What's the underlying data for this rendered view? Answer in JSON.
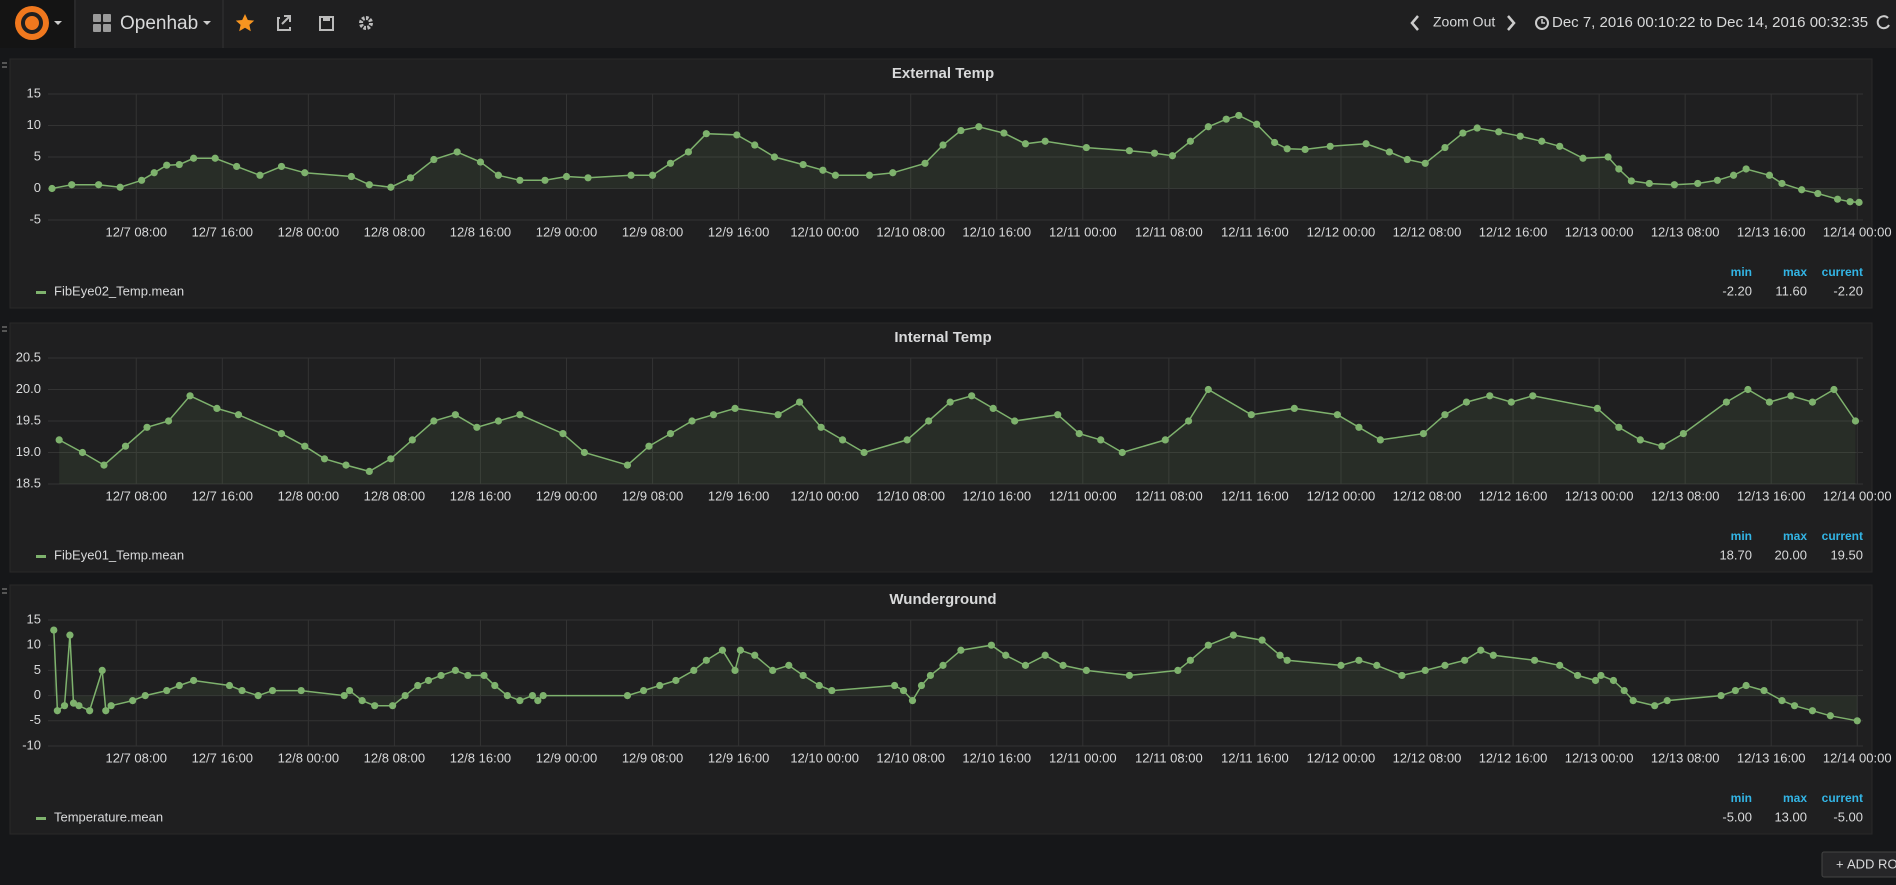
{
  "header": {
    "dashboard": "Openhab",
    "zoom": "Zoom Out",
    "time_range": "Dec 7, 2016 00:10:22 to Dec 14, 2016 00:32:35",
    "add_row": "ADD ROW"
  },
  "chart_data": [
    {
      "type": "line",
      "title": "External Temp",
      "x": [
        "12/7 00:10",
        "12/7 02:00",
        "12/7 04:30",
        "12/7 06:30",
        "12/7 08:30",
        "12/7 09:40",
        "12/7 10:50",
        "12/7 12:00",
        "12/7 13:20",
        "12/7 15:20",
        "12/7 17:20",
        "12/7 19:30",
        "12/7 21:30",
        "12/7 23:40",
        "12/8 04:00",
        "12/8 05:40",
        "12/8 07:40",
        "12/8 09:30",
        "12/8 11:40",
        "12/8 13:50",
        "12/8 16:00",
        "12/8 17:40",
        "12/8 19:40",
        "12/8 22:00",
        "12/9 00:00",
        "12/9 02:00",
        "12/9 06:00",
        "12/9 08:00",
        "12/9 09:40",
        "12/9 11:20",
        "12/9 13:00",
        "12/9 15:50",
        "12/9 17:30",
        "12/9 19:20",
        "12/9 22:00",
        "12/9 23:50",
        "12/10 01:00",
        "12/10 04:10",
        "12/10 06:20",
        "12/10 09:20",
        "12/10 11:00",
        "12/10 12:40",
        "12/10 14:20",
        "12/10 16:40",
        "12/10 18:40",
        "12/10 20:30",
        "12/11 00:20",
        "12/11 04:20",
        "12/11 06:40",
        "12/11 08:20",
        "12/11 10:00",
        "12/11 11:40",
        "12/11 13:20",
        "12/11 14:30",
        "12/11 16:10",
        "12/11 17:50",
        "12/11 19:00",
        "12/11 20:40",
        "12/11 23:00",
        "12/12 02:20",
        "12/12 04:30",
        "12/12 06:10",
        "12/12 07:50",
        "12/12 09:40",
        "12/12 11:20",
        "12/12 12:40",
        "12/12 14:40",
        "12/12 16:40",
        "12/12 18:40",
        "12/12 20:20",
        "12/12 22:30",
        "12/13 00:50",
        "12/13 01:50",
        "12/13 03:00",
        "12/13 04:40",
        "12/13 07:00",
        "12/13 09:10",
        "12/13 11:00",
        "12/13 12:30",
        "12/13 13:40",
        "12/13 15:50",
        "12/13 17:00",
        "12/13 18:50",
        "12/13 20:20",
        "12/13 22:10",
        "12/13 23:20",
        "12/14 00:10"
      ],
      "series": [
        {
          "name": "FibEye02_Temp.mean",
          "color": "#7eb26d",
          "values": [
            0.0,
            0.6,
            0.6,
            0.2,
            1.3,
            2.5,
            3.7,
            3.8,
            4.8,
            4.8,
            3.5,
            2.1,
            3.5,
            2.5,
            1.9,
            0.6,
            0.2,
            1.7,
            4.6,
            5.8,
            4.2,
            2.1,
            1.3,
            1.3,
            1.9,
            1.7,
            2.1,
            2.1,
            4.0,
            5.8,
            8.7,
            8.5,
            6.9,
            5.0,
            3.8,
            2.9,
            2.1,
            2.1,
            2.5,
            4.0,
            6.9,
            9.2,
            9.8,
            8.8,
            7.1,
            7.5,
            6.5,
            6.0,
            5.6,
            5.2,
            7.5,
            9.8,
            11.0,
            11.6,
            10.2,
            7.3,
            6.3,
            6.2,
            6.7,
            7.1,
            5.8,
            4.6,
            4.0,
            6.5,
            8.8,
            9.6,
            9.0,
            8.3,
            7.5,
            6.7,
            4.8,
            5.0,
            3.1,
            1.2,
            0.8,
            0.6,
            0.8,
            1.3,
            2.1,
            3.1,
            2.1,
            0.8,
            -0.2,
            -0.8,
            -1.7,
            -2.1,
            -2.2
          ]
        }
      ],
      "xlim": [
        "12/7 00:10",
        "12/14 00:32"
      ],
      "xticks": [
        "12/7 08:00",
        "12/7 16:00",
        "12/8 00:00",
        "12/8 08:00",
        "12/8 16:00",
        "12/9 00:00",
        "12/9 08:00",
        "12/9 16:00",
        "12/10 00:00",
        "12/10 08:00",
        "12/10 16:00",
        "12/11 00:00",
        "12/11 08:00",
        "12/11 16:00",
        "12/12 00:00",
        "12/12 08:00",
        "12/12 16:00",
        "12/13 00:00",
        "12/13 08:00",
        "12/13 16:00",
        "12/14 00:00"
      ],
      "ylim": [
        -5,
        15
      ],
      "yticks": [
        -5,
        0,
        5,
        10,
        15
      ],
      "grid": true,
      "legend_stats": {
        "headers": [
          "min",
          "max",
          "current"
        ],
        "values": [
          "-2.20",
          "11.60",
          "-2.20"
        ]
      }
    },
    {
      "type": "line",
      "title": "Internal Temp",
      "x": [
        "12/7 00:50",
        "12/7 03:00",
        "12/7 05:00",
        "12/7 07:00",
        "12/7 09:00",
        "12/7 11:00",
        "12/7 13:00",
        "12/7 15:30",
        "12/7 17:30",
        "12/7 21:30",
        "12/7 23:40",
        "12/8 01:30",
        "12/8 03:30",
        "12/8 05:40",
        "12/8 07:40",
        "12/8 09:40",
        "12/8 11:40",
        "12/8 13:40",
        "12/8 15:40",
        "12/8 17:40",
        "12/8 19:40",
        "12/8 23:40",
        "12/9 01:40",
        "12/9 05:40",
        "12/9 07:40",
        "12/9 09:40",
        "12/9 11:40",
        "12/9 13:40",
        "12/9 15:40",
        "12/9 19:40",
        "12/9 21:40",
        "12/9 23:40",
        "12/10 01:40",
        "12/10 03:40",
        "12/10 07:40",
        "12/10 09:40",
        "12/10 11:40",
        "12/10 13:40",
        "12/10 15:40",
        "12/10 17:40",
        "12/10 21:40",
        "12/10 23:40",
        "12/11 01:40",
        "12/11 03:40",
        "12/11 07:40",
        "12/11 09:50",
        "12/11 11:40",
        "12/11 15:40",
        "12/11 19:40",
        "12/11 23:40",
        "12/12 01:40",
        "12/12 03:40",
        "12/12 07:40",
        "12/12 09:40",
        "12/12 11:40",
        "12/12 13:50",
        "12/12 15:50",
        "12/12 17:50",
        "12/12 23:50",
        "12/13 01:50",
        "12/13 03:50",
        "12/13 05:50",
        "12/13 07:50",
        "12/13 11:50",
        "12/13 13:50",
        "12/13 15:50",
        "12/13 17:50",
        "12/13 19:50",
        "12/13 21:50",
        "12/13 23:50"
      ],
      "series": [
        {
          "name": "FibEye01_Temp.mean",
          "color": "#7eb26d",
          "values": [
            19.2,
            19.0,
            18.8,
            19.1,
            19.4,
            19.5,
            19.9,
            19.7,
            19.6,
            19.3,
            19.1,
            18.9,
            18.8,
            18.7,
            18.9,
            19.2,
            19.5,
            19.6,
            19.4,
            19.5,
            19.6,
            19.3,
            19.0,
            18.8,
            19.1,
            19.3,
            19.5,
            19.6,
            19.7,
            19.6,
            19.8,
            19.4,
            19.2,
            19.0,
            19.2,
            19.5,
            19.8,
            19.9,
            19.7,
            19.5,
            19.6,
            19.3,
            19.2,
            19.0,
            19.2,
            19.5,
            20.0,
            19.6,
            19.7,
            19.6,
            19.4,
            19.2,
            19.3,
            19.6,
            19.8,
            19.9,
            19.8,
            19.9,
            19.7,
            19.4,
            19.2,
            19.1,
            19.3,
            19.8,
            20.0,
            19.8,
            19.9,
            19.8,
            20.0,
            19.5
          ]
        }
      ],
      "xlim": [
        "12/7 00:10",
        "12/14 00:32"
      ],
      "xticks": [
        "12/7 08:00",
        "12/7 16:00",
        "12/8 00:00",
        "12/8 08:00",
        "12/8 16:00",
        "12/9 00:00",
        "12/9 08:00",
        "12/9 16:00",
        "12/10 00:00",
        "12/10 08:00",
        "12/10 16:00",
        "12/11 00:00",
        "12/11 08:00",
        "12/11 16:00",
        "12/12 00:00",
        "12/12 08:00",
        "12/12 16:00",
        "12/13 00:00",
        "12/13 08:00",
        "12/13 16:00",
        "12/14 00:00"
      ],
      "ylim": [
        18.5,
        20.5
      ],
      "yticks": [
        18.5,
        {
          "value": 19,
          "label": "19.0"
        },
        19.5,
        {
          "value": 20,
          "label": "20.0"
        },
        20.5
      ],
      "grid": true,
      "legend_stats": {
        "headers": [
          "min",
          "max",
          "current"
        ],
        "values": [
          "18.70",
          "20.00",
          "19.50"
        ]
      }
    },
    {
      "type": "line",
      "title": "Wunderground",
      "x": [
        "12/7 00:20",
        "12/7 00:40",
        "12/7 01:20",
        "12/7 01:50",
        "12/7 02:10",
        "12/7 02:40",
        "12/7 03:40",
        "12/7 04:50",
        "12/7 05:10",
        "12/7 05:40",
        "12/7 07:40",
        "12/7 08:50",
        "12/7 10:50",
        "12/7 12:00",
        "12/7 13:20",
        "12/7 16:40",
        "12/7 17:50",
        "12/7 19:20",
        "12/7 20:40",
        "12/7 23:20",
        "12/8 03:20",
        "12/8 03:50",
        "12/8 05:00",
        "12/8 06:10",
        "12/8 07:50",
        "12/8 09:00",
        "12/8 10:10",
        "12/8 11:10",
        "12/8 12:20",
        "12/8 13:40",
        "12/8 14:50",
        "12/8 16:20",
        "12/8 17:20",
        "12/8 18:30",
        "12/8 19:40",
        "12/8 20:50",
        "12/8 21:20",
        "12/8 21:50",
        "12/9 05:40",
        "12/9 07:10",
        "12/9 08:40",
        "12/9 10:10",
        "12/9 11:50",
        "12/9 13:00",
        "12/9 14:30",
        "12/9 15:40",
        "12/9 16:10",
        "12/9 17:30",
        "12/9 19:10",
        "12/9 20:40",
        "12/9 22:00",
        "12/9 23:30",
        "12/10 00:40",
        "12/10 06:30",
        "12/10 07:20",
        "12/10 08:10",
        "12/10 09:00",
        "12/10 09:50",
        "12/10 11:00",
        "12/10 12:40",
        "12/10 15:30",
        "12/10 16:50",
        "12/10 18:40",
        "12/10 20:30",
        "12/10 22:10",
        "12/11 00:20",
        "12/11 04:20",
        "12/11 08:50",
        "12/11 10:00",
        "12/11 11:40",
        "12/11 14:00",
        "12/11 16:40",
        "12/11 18:20",
        "12/11 19:00",
        "12/12 00:00",
        "12/12 01:40",
        "12/12 03:20",
        "12/12 05:40",
        "12/12 07:50",
        "12/12 09:40",
        "12/12 11:30",
        "12/12 13:00",
        "12/12 14:10",
        "12/12 18:00",
        "12/12 20:20",
        "12/12 22:00",
        "12/12 23:40",
        "12/13 00:10",
        "12/13 01:20",
        "12/13 02:20",
        "12/13 03:10",
        "12/13 05:10",
        "12/13 06:20",
        "12/13 11:20",
        "12/13 12:40",
        "12/13 13:40",
        "12/13 15:20",
        "12/13 17:00",
        "12/13 18:10",
        "12/13 19:50",
        "12/13 21:30",
        "12/14 00:00"
      ],
      "series": [
        {
          "name": "Temperature.mean",
          "color": "#7eb26d",
          "values": [
            13,
            -3,
            -2,
            12,
            -1.5,
            -2,
            -3,
            5,
            -3,
            -2,
            -1,
            0,
            1,
            2,
            3,
            2,
            1,
            0,
            1,
            1,
            0,
            1,
            -1,
            -2,
            -2,
            0,
            2,
            3,
            4,
            5,
            4,
            4,
            2,
            0,
            -1,
            0,
            -1,
            0,
            0,
            1,
            2,
            3,
            5,
            7,
            9,
            5,
            9,
            8,
            5,
            6,
            4,
            2,
            1,
            2,
            1,
            -1,
            2,
            4,
            6,
            9,
            10,
            8,
            6,
            8,
            6,
            5,
            4,
            5,
            7,
            10,
            12,
            11,
            8,
            7,
            6,
            7,
            6,
            4,
            5,
            6,
            7,
            9,
            8,
            7,
            6,
            4,
            3,
            4,
            3,
            1,
            -1,
            -2,
            -1,
            0,
            1,
            2,
            1,
            -1,
            -2,
            -3,
            -4,
            -5
          ]
        }
      ],
      "xlim": [
        "12/7 00:10",
        "12/14 00:32"
      ],
      "xticks": [
        "12/7 08:00",
        "12/7 16:00",
        "12/8 00:00",
        "12/8 08:00",
        "12/8 16:00",
        "12/9 00:00",
        "12/9 08:00",
        "12/9 16:00",
        "12/10 00:00",
        "12/10 08:00",
        "12/10 16:00",
        "12/11 00:00",
        "12/11 08:00",
        "12/11 16:00",
        "12/12 00:00",
        "12/12 08:00",
        "12/12 16:00",
        "12/13 00:00",
        "12/13 08:00",
        "12/13 16:00",
        "12/14 00:00"
      ],
      "ylim": [
        -10,
        15
      ],
      "yticks": [
        -10,
        -5,
        0,
        5,
        10,
        15
      ],
      "grid": true,
      "legend_stats": {
        "headers": [
          "min",
          "max",
          "current"
        ],
        "values": [
          "-5.00",
          "13.00",
          "-5.00"
        ]
      }
    }
  ]
}
